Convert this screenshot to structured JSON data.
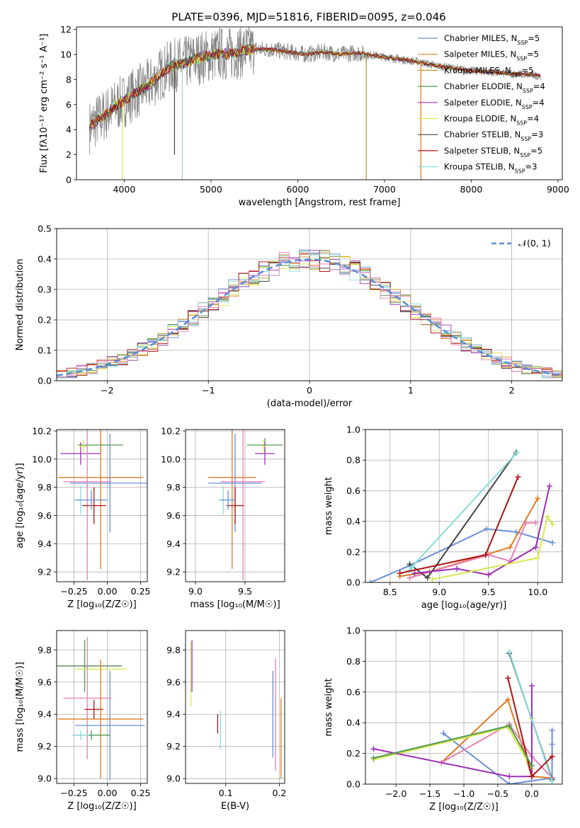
{
  "figure_title": "PLATE=0396, MJD=51816, FIBERID=0095, z=0.046",
  "colors": {
    "grid": "#b0b0b0",
    "series": [
      "#6a8fd8",
      "#e07b22",
      "#b59a1f",
      "#4f9a4f",
      "#9b30b5",
      "#d9e84f",
      "#444444",
      "#b01010",
      "#86dcdc",
      "#e87fb8"
    ]
  },
  "chart_data": [
    {
      "id": "spectrum",
      "type": "line",
      "title": "PLATE=0396, MJD=51816, FIBERID=0095, z=0.046",
      "xlabel": "wavelength [Angstrom, rest frame]",
      "ylabel": "Flux [fλ10⁻¹⁷ erg cm⁻² s⁻¹ A⁻¹]",
      "xlim": [
        3450,
        9050
      ],
      "ylim": [
        0,
        12.2
      ],
      "xticks": [
        4000,
        5000,
        6000,
        7000,
        8000,
        9000
      ],
      "yticks": [
        0,
        2,
        4,
        6,
        8,
        10,
        12
      ],
      "grid": false,
      "legend_position": "top-right",
      "legend": [
        {
          "label": "Chabrier MILES, N",
          "sub": "SSP",
          "n": "=5"
        },
        {
          "label": "Salpeter MILES, N",
          "sub": "SSP",
          "n": "=5"
        },
        {
          "label": "Kroupa MILES, N",
          "sub": "SSP",
          "n": "=5"
        },
        {
          "label": "Chabrier ELODIE, N",
          "sub": "SSP",
          "n": "=4"
        },
        {
          "label": "Salpeter ELODIE, N",
          "sub": "SSP",
          "n": "=4"
        },
        {
          "label": "Kroupa ELODIE, N",
          "sub": "SSP",
          "n": "=4"
        },
        {
          "label": "Chabrier STELIB, N",
          "sub": "SSP",
          "n": "=3"
        },
        {
          "label": "Salpeter STELIB, N",
          "sub": "SSP",
          "n": "=5"
        },
        {
          "label": "Kroupa STELIB, N",
          "sub": "SSP",
          "n": "=3"
        }
      ],
      "continuum": [
        [
          3600,
          4.2
        ],
        [
          3700,
          4.8
        ],
        [
          3800,
          5.3
        ],
        [
          3900,
          5.9
        ],
        [
          4000,
          6.3
        ],
        [
          4100,
          6.8
        ],
        [
          4200,
          7.2
        ],
        [
          4300,
          7.6
        ],
        [
          4400,
          8.3
        ],
        [
          4500,
          8.9
        ],
        [
          4600,
          9.2
        ],
        [
          4700,
          9.3
        ],
        [
          4800,
          9.6
        ],
        [
          4900,
          9.8
        ],
        [
          5000,
          9.9
        ],
        [
          5100,
          10.1
        ],
        [
          5200,
          10.0
        ],
        [
          5300,
          10.2
        ],
        [
          5400,
          10.3
        ],
        [
          5500,
          10.4
        ],
        [
          5600,
          10.4
        ],
        [
          5700,
          10.4
        ],
        [
          5800,
          10.3
        ],
        [
          5900,
          10.2
        ],
        [
          6000,
          10.1
        ],
        [
          6100,
          10.0
        ],
        [
          6200,
          10.1
        ],
        [
          6300,
          10.2
        ],
        [
          6400,
          10.1
        ],
        [
          6500,
          10.0
        ],
        [
          6600,
          10.1
        ],
        [
          6700,
          10.1
        ],
        [
          6800,
          10.0
        ],
        [
          6900,
          9.9
        ],
        [
          7000,
          9.8
        ],
        [
          7200,
          9.6
        ],
        [
          7400,
          9.4
        ],
        [
          7600,
          9.1
        ],
        [
          7800,
          8.9
        ],
        [
          8000,
          8.7
        ],
        [
          8200,
          8.6
        ],
        [
          8400,
          8.5
        ],
        [
          8600,
          8.4
        ],
        [
          8800,
          8.3
        ]
      ],
      "spikes": [
        {
          "x": 4670,
          "y": 0,
          "series": 8
        },
        {
          "x": 6790,
          "y": 0,
          "series": 2
        },
        {
          "x": 7420,
          "y": 0,
          "series": 1
        },
        {
          "x": 3980,
          "y": 0,
          "series": 5
        },
        {
          "x": 4580,
          "y": 2.0,
          "series": 6
        }
      ]
    },
    {
      "id": "residuals",
      "type": "histogram",
      "xlabel": "(data-model)/error",
      "ylabel": "Normed distribution",
      "xlim": [
        -2.5,
        2.5
      ],
      "ylim": [
        0,
        0.5
      ],
      "xticks": [
        -2,
        -1,
        0,
        1,
        2
      ],
      "yticks": [
        0.0,
        0.1,
        0.2,
        0.3,
        0.4,
        0.5
      ],
      "grid": true,
      "legend_position": "top-right",
      "legend": [
        {
          "label": "𝒩(0, 1)"
        }
      ],
      "bin_width": 0.1
    },
    {
      "id": "age_vs_Z",
      "type": "scatter",
      "xlabel": "Z [log₁₀(Z/Z☉)]",
      "ylabel": "age  [log₁₀(age/yr)]",
      "xlim": [
        -0.38,
        0.3
      ],
      "ylim": [
        9.13,
        10.21
      ],
      "xticks": [
        -0.25,
        0.0,
        0.25
      ],
      "yticks": [
        9.2,
        9.4,
        9.6,
        9.8,
        10.0,
        10.2
      ],
      "grid": true,
      "points": [
        {
          "series": 4,
          "x": -0.2,
          "y": 10.04,
          "xerr": 0.15,
          "yerr": 0.08
        },
        {
          "series": 3,
          "x": -0.05,
          "y": 10.1,
          "xerr": 0.17,
          "yerr": 0.05
        },
        {
          "series": 5,
          "x": -0.18,
          "y": 10.09,
          "xerr": 0.03,
          "yerr": 0.05
        },
        {
          "series": 1,
          "x": -0.05,
          "y": 9.87,
          "xerr": 0.32,
          "yerr": 0.65
        },
        {
          "series": 0,
          "x": 0.02,
          "y": 9.83,
          "xerr": 0.3,
          "yerr": 0.35
        },
        {
          "series": 9,
          "x": -0.15,
          "y": 9.84,
          "xerr": 0.18,
          "yerr": 0.7
        },
        {
          "series": 8,
          "x": -0.2,
          "y": 9.71,
          "xerr": 0.06,
          "yerr": 0.1
        },
        {
          "series": 7,
          "x": -0.1,
          "y": 9.67,
          "xerr": 0.09,
          "yerr": 0.13
        },
        {
          "series": 0,
          "x": -0.12,
          "y": 9.71,
          "xerr": 0.12,
          "yerr": 0.07
        }
      ]
    },
    {
      "id": "age_vs_mass",
      "type": "scatter",
      "xlabel": "mass [log₁₀(M/M☉)]",
      "ylabel": "",
      "xlim": [
        8.9,
        9.9
      ],
      "ylim": [
        9.13,
        10.21
      ],
      "xticks": [
        9.0,
        9.5
      ],
      "yticks": [
        9.2,
        9.4,
        9.6,
        9.8,
        10.0,
        10.2
      ],
      "grid": true,
      "points": [
        {
          "series": 3,
          "x": 9.7,
          "y": 10.1,
          "xerr": 0.18,
          "yerr": 0.05
        },
        {
          "series": 4,
          "x": 9.7,
          "y": 10.04,
          "xerr": 0.1,
          "yerr": 0.08
        },
        {
          "series": 5,
          "x": 9.69,
          "y": 10.09,
          "xerr": 0.02,
          "yerr": 0.05
        },
        {
          "series": 1,
          "x": 9.37,
          "y": 9.87,
          "xerr": 0.24,
          "yerr": 0.65
        },
        {
          "series": 0,
          "x": 9.4,
          "y": 9.83,
          "xerr": 0.27,
          "yerr": 0.35
        },
        {
          "series": 9,
          "x": 9.48,
          "y": 9.84,
          "xerr": 0.22,
          "yerr": 0.7
        },
        {
          "series": 8,
          "x": 9.28,
          "y": 9.71,
          "xerr": 0.05,
          "yerr": 0.1
        },
        {
          "series": 7,
          "x": 9.4,
          "y": 9.67,
          "xerr": 0.09,
          "yerr": 0.13
        },
        {
          "series": 0,
          "x": 9.33,
          "y": 9.71,
          "xerr": 0.08,
          "yerr": 0.07
        }
      ]
    },
    {
      "id": "mass_weight_vs_age",
      "type": "line",
      "xlabel": "age  [log₁₀(age/yr)]",
      "ylabel": "mass weight",
      "xlim": [
        8.25,
        10.25
      ],
      "ylim": [
        0,
        1.0
      ],
      "xticks": [
        8.5,
        9.0,
        9.5,
        10.0
      ],
      "yticks": [
        0.0,
        0.2,
        0.4,
        0.6,
        0.8,
        1.0
      ],
      "grid": true,
      "series": [
        {
          "series": 0,
          "x": [
            8.3,
            8.7,
            9.48,
            9.78,
            10.15
          ],
          "y": [
            0.0,
            0.11,
            0.35,
            0.33,
            0.26
          ]
        },
        {
          "series": 1,
          "x": [
            8.6,
            8.9,
            9.47,
            9.72,
            10.0
          ],
          "y": [
            0.04,
            0.07,
            0.18,
            0.23,
            0.55
          ]
        },
        {
          "series": 9,
          "x": [
            8.7,
            9.5,
            9.72,
            9.88,
            9.98
          ],
          "y": [
            0.03,
            0.18,
            0.14,
            0.39,
            0.39
          ]
        },
        {
          "series": 6,
          "x": [
            8.7,
            8.88,
            9.78
          ],
          "y": [
            0.12,
            0.03,
            0.85
          ]
        },
        {
          "series": 8,
          "x": [
            8.7,
            8.72,
            9.79
          ],
          "y": [
            0.08,
            0.1,
            0.85
          ]
        },
        {
          "series": 7,
          "x": [
            8.6,
            9.47,
            9.8
          ],
          "y": [
            0.06,
            0.18,
            0.69
          ]
        },
        {
          "series": 4,
          "x": [
            8.75,
            9.18,
            9.5,
            9.98,
            10.12
          ],
          "y": [
            0.06,
            0.09,
            0.05,
            0.23,
            0.63
          ]
        },
        {
          "series": 5,
          "x": [
            8.93,
            10.0,
            10.1,
            10.15
          ],
          "y": [
            0.02,
            0.16,
            0.43,
            0.38
          ]
        }
      ]
    },
    {
      "id": "mass_vs_Z",
      "type": "scatter",
      "xlabel": "Z [log₁₀(Z/Z☉)]",
      "ylabel": "mass [log₁₀(M/M☉)]",
      "xlim": [
        -0.38,
        0.3
      ],
      "ylim": [
        8.97,
        9.92
      ],
      "xticks": [
        -0.25,
        0.0,
        0.25
      ],
      "yticks": [
        9.0,
        9.2,
        9.4,
        9.6,
        9.8
      ],
      "grid": true,
      "points": [
        {
          "series": 4,
          "x": -0.15,
          "y": 9.7,
          "xerr": 0.25,
          "yerr": 0.02
        },
        {
          "series": 3,
          "x": -0.17,
          "y": 9.7,
          "xerr": 0.28,
          "yerr": 0.16
        },
        {
          "series": 5,
          "x": -0.05,
          "y": 9.68,
          "xerr": 0.2,
          "yerr": 0.04
        },
        {
          "series": 9,
          "x": -0.15,
          "y": 9.5,
          "xerr": 0.18,
          "yerr": 0.38
        },
        {
          "series": 7,
          "x": -0.1,
          "y": 9.43,
          "xerr": 0.07,
          "yerr": 0.06
        },
        {
          "series": 1,
          "x": -0.05,
          "y": 9.37,
          "xerr": 0.32,
          "yerr": 0.37
        },
        {
          "series": 0,
          "x": 0.02,
          "y": 9.33,
          "xerr": 0.26,
          "yerr": 0.34
        },
        {
          "series": 3,
          "x": -0.12,
          "y": 9.27,
          "xerr": 0.14,
          "yerr": 0.03
        },
        {
          "series": 8,
          "x": -0.2,
          "y": 9.27,
          "xerr": 0.06,
          "yerr": 0.03
        }
      ]
    },
    {
      "id": "mass_vs_ebv",
      "type": "scatter",
      "xlabel": "E(B-V)",
      "ylabel": "",
      "xlim": [
        0.025,
        0.21
      ],
      "ylim": [
        8.97,
        9.92
      ],
      "xticks": [
        0.1,
        0.2
      ],
      "yticks": [
        9.0,
        9.2,
        9.4,
        9.6,
        9.8
      ],
      "grid": true,
      "points": [
        {
          "series": 4,
          "x": 0.037,
          "y": 9.7,
          "xerr": 0.0,
          "yerr": 0.16
        },
        {
          "series": 5,
          "x": 0.035,
          "y": 9.65,
          "xerr": 0.0,
          "yerr": 0.2
        },
        {
          "series": 7,
          "x": 0.085,
          "y": 9.34,
          "xerr": 0.0,
          "yerr": 0.06
        },
        {
          "series": 8,
          "x": 0.09,
          "y": 9.3,
          "xerr": 0.0,
          "yerr": 0.12
        },
        {
          "series": 0,
          "x": 0.188,
          "y": 9.4,
          "xerr": 0.0,
          "yerr": 0.27
        },
        {
          "series": 9,
          "x": 0.193,
          "y": 9.4,
          "xerr": 0.0,
          "yerr": 0.35
        },
        {
          "series": 1,
          "x": 0.203,
          "y": 9.25,
          "xerr": 0.0,
          "yerr": 0.25
        }
      ]
    },
    {
      "id": "mass_weight_vs_Z",
      "type": "line",
      "xlabel": "Z [log₁₀(Z/Z☉)]",
      "ylabel": "mass weight",
      "xlim": [
        -2.45,
        0.45
      ],
      "ylim": [
        0,
        1.0
      ],
      "xticks": [
        -2.0,
        -1.5,
        -1.0,
        -0.5,
        0.0
      ],
      "yticks": [
        0.0,
        0.2,
        0.4,
        0.6,
        0.8,
        1.0
      ],
      "grid": true,
      "series": [
        {
          "series": 0,
          "x": [
            -1.3,
            -0.33,
            0.3,
            0.3,
            0.3
          ],
          "y": [
            0.33,
            0.0,
            0.04,
            0.26,
            0.35
          ]
        },
        {
          "series": 1,
          "x": [
            -1.33,
            -0.35,
            0.0,
            0.3
          ],
          "y": [
            0.14,
            0.55,
            0.05,
            0.04
          ]
        },
        {
          "series": 9,
          "x": [
            -1.33,
            -0.33,
            0.0,
            0.3
          ],
          "y": [
            0.14,
            0.39,
            0.18,
            0.04
          ]
        },
        {
          "series": 5,
          "x": [
            -2.33,
            -0.35,
            0.0,
            0.0
          ],
          "y": [
            0.16,
            0.37,
            0.1,
            0.43
          ]
        },
        {
          "series": 4,
          "x": [
            -2.33,
            -0.33,
            0.0,
            0.0
          ],
          "y": [
            0.23,
            0.05,
            0.05,
            0.64
          ]
        },
        {
          "series": 6,
          "x": [
            -0.33,
            0.3
          ],
          "y": [
            0.85,
            0.03
          ]
        },
        {
          "series": 8,
          "x": [
            -0.33,
            0.3
          ],
          "y": [
            0.86,
            0.02
          ]
        },
        {
          "series": 7,
          "x": [
            -0.35,
            0.0,
            0.3
          ],
          "y": [
            0.69,
            0.05,
            0.18
          ]
        },
        {
          "series": 3,
          "x": [
            -2.33,
            -0.33,
            0.0
          ],
          "y": [
            0.17,
            0.38,
            0.12
          ]
        }
      ]
    }
  ]
}
